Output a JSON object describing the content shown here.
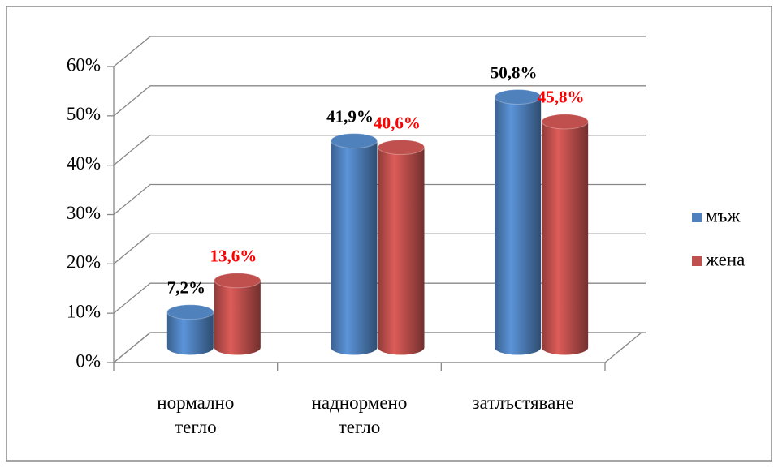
{
  "chart_data": {
    "type": "bar3d",
    "categories": [
      "нормално тегло",
      "наднормено тегло",
      "затлъстяване"
    ],
    "series": [
      {
        "name": "мъж",
        "color": "#4f81bd",
        "values": [
          7.2,
          41.9,
          50.8
        ],
        "value_labels": [
          "7,2%",
          "41,9%",
          "50,8%"
        ],
        "label_color": "#000000"
      },
      {
        "name": "жена",
        "color": "#c0504d",
        "values": [
          13.6,
          40.6,
          45.8
        ],
        "value_labels": [
          "13,6%",
          "40,6%",
          "45,8%"
        ],
        "label_color": "#ff0000"
      }
    ],
    "ylim": [
      0,
      60
    ],
    "yticks": [
      {
        "value": 0,
        "label": "0%"
      },
      {
        "value": 10,
        "label": "10%"
      },
      {
        "value": 20,
        "label": "20%"
      },
      {
        "value": 30,
        "label": "30%"
      },
      {
        "value": 40,
        "label": "40%"
      },
      {
        "value": 50,
        "label": "50%"
      },
      {
        "value": 60,
        "label": "60%"
      }
    ],
    "grid": true,
    "legend": "right"
  }
}
